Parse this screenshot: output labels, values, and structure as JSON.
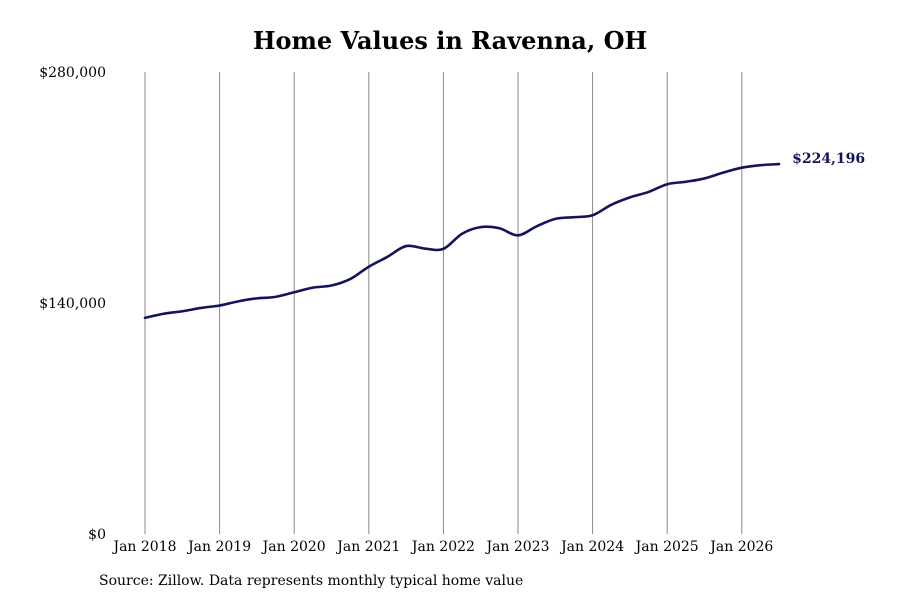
{
  "chart_data": {
    "type": "line",
    "title": "Home Values in Ravenna, OH",
    "source": "Source: Zillow. Data represents monthly typical home value",
    "xlabel": "",
    "ylabel": "",
    "xlim": [
      "2018-01",
      "2026-07"
    ],
    "ylim": [
      0,
      280000
    ],
    "y_ticks": [
      0,
      140000,
      280000
    ],
    "y_tick_labels": [
      "$0",
      "$140,000",
      "$280,000"
    ],
    "x_ticks": [
      "2018-01",
      "2019-01",
      "2020-01",
      "2021-01",
      "2022-01",
      "2023-01",
      "2024-01",
      "2025-01",
      "2026-01"
    ],
    "x_tick_labels": [
      "Jan 2018",
      "Jan 2019",
      "Jan 2020",
      "Jan 2021",
      "Jan 2022",
      "Jan 2023",
      "Jan 2024",
      "Jan 2025",
      "Jan 2026"
    ],
    "grid": "vertical",
    "line_color": "#14145c",
    "grid_color": "#8a8a8a",
    "end_label": "$224,196",
    "series": [
      {
        "x": [
          "2018-01",
          "2018-04",
          "2018-07",
          "2018-10",
          "2019-01",
          "2019-04",
          "2019-07",
          "2019-10",
          "2020-01",
          "2020-04",
          "2020-07",
          "2020-10",
          "2021-01",
          "2021-04",
          "2021-07",
          "2021-10",
          "2022-01",
          "2022-04",
          "2022-07",
          "2022-10",
          "2023-01",
          "2023-04",
          "2023-07",
          "2023-10",
          "2024-01",
          "2024-04",
          "2024-07",
          "2024-10",
          "2025-01",
          "2025-04",
          "2025-07",
          "2025-10",
          "2026-01",
          "2026-04",
          "2026-07"
        ],
        "values": [
          131000,
          133500,
          135000,
          137000,
          138500,
          141000,
          142800,
          143700,
          146500,
          149300,
          150600,
          154500,
          162000,
          168000,
          174500,
          173000,
          172800,
          182000,
          186000,
          185300,
          181000,
          186500,
          191000,
          192000,
          193200,
          199500,
          204000,
          207300,
          212000,
          213500,
          215500,
          219000,
          222000,
          223500,
          224196
        ]
      }
    ]
  }
}
